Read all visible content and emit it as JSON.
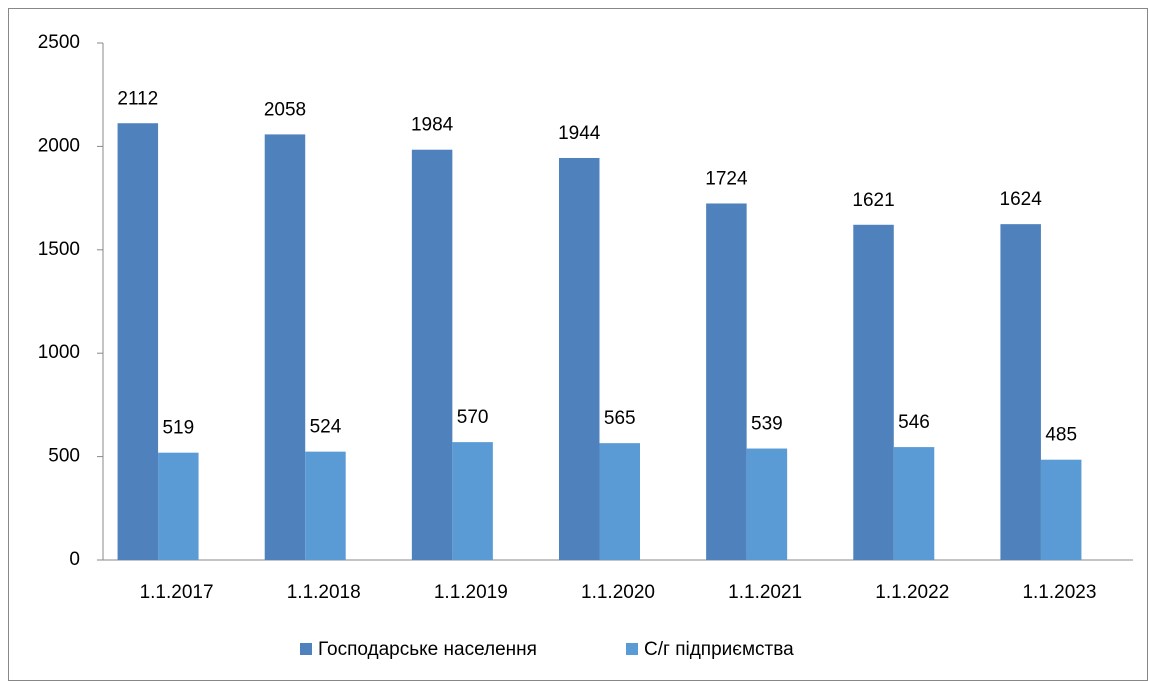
{
  "chart_data": {
    "type": "bar",
    "categories": [
      "1.1.2017",
      "1.1.2018",
      "1.1.2019",
      "1.1.2020",
      "1.1.2021",
      "1.1.2022",
      "1.1.2023"
    ],
    "series": [
      {
        "name": "Господарське населення",
        "color": "#4f81bd",
        "values": [
          2112,
          2058,
          1984,
          1944,
          1724,
          1621,
          1624
        ]
      },
      {
        "name": "С/г підприємства",
        "color": "#5b9bd5",
        "values": [
          519,
          524,
          570,
          565,
          539,
          546,
          485
        ]
      }
    ],
    "ylim": [
      0,
      2500
    ],
    "yticks": [
      0,
      500,
      1000,
      1500,
      2000,
      2500
    ],
    "grid": false,
    "legend": "bottom"
  }
}
